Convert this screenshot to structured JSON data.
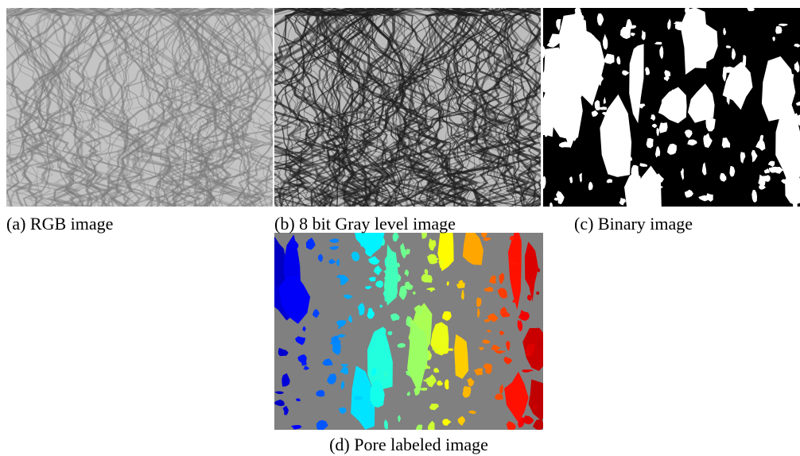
{
  "figure": {
    "panels": [
      {
        "caption": "(a) RGB image"
      },
      {
        "caption": "(b) 8 bit Gray level image"
      },
      {
        "caption": "(c) Binary image"
      },
      {
        "caption": "(d) Pore labeled image"
      }
    ]
  }
}
